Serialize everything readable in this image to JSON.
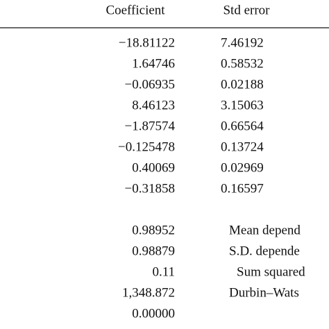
{
  "table": {
    "header": [
      "Coefficient",
      "Std error"
    ],
    "rows": [
      [
        "−18.81122",
        "7.46192"
      ],
      [
        "1.64746",
        "0.58532"
      ],
      [
        "−0.06935",
        "0.02188"
      ],
      [
        "8.46123",
        "3.15063"
      ],
      [
        "−1.87574",
        "0.66564"
      ],
      [
        "−0.125478",
        "0.13724"
      ],
      [
        "0.40069",
        "0.02969"
      ],
      [
        "−0.31858",
        "0.16597"
      ]
    ],
    "stats": [
      [
        "0.98952",
        "Mean depend"
      ],
      [
        "0.98879",
        "S.D. depende"
      ],
      [
        "0.11",
        "Sum squared"
      ],
      [
        "1,348.872",
        "Durbin–Wats"
      ],
      [
        "0.00000"
      ]
    ]
  }
}
